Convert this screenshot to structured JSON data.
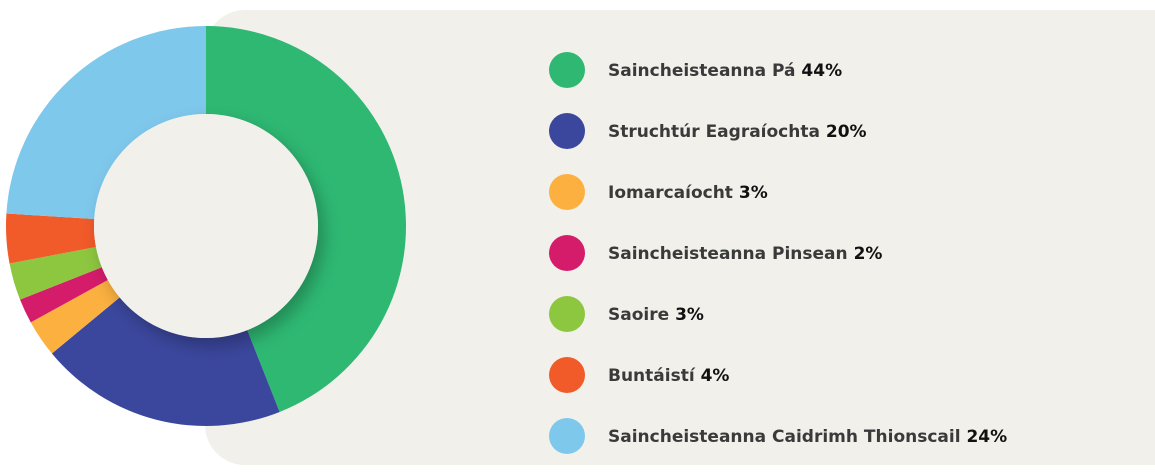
{
  "chart_data": {
    "type": "donut",
    "categories": [
      "Saincheisteanna Pá",
      "Struchtúr Eagraíochta",
      "Iomarcaíocht",
      "Saincheisteanna Pinsean",
      "Saoire",
      "Buntáistí",
      "Saincheisteanna Caidrimh Thionscail"
    ],
    "values": [
      44,
      20,
      3,
      2,
      3,
      4,
      24
    ],
    "value_labels": [
      "44%",
      "20%",
      "3%",
      "2%",
      "3%",
      "4%",
      "24%"
    ],
    "colors": [
      "#2eb872",
      "#3b479d",
      "#fbb040",
      "#d41c6b",
      "#8dc63f",
      "#f15a29",
      "#7ec8ec"
    ]
  }
}
